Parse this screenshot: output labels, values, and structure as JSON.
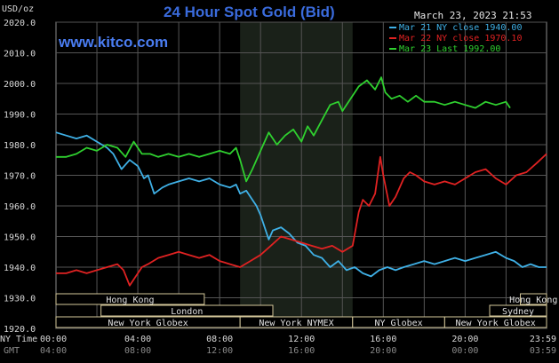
{
  "header": {
    "title": "24 Hour Spot Gold (Bid)",
    "unit": "USD/oz",
    "website": "www.kitco.com",
    "timestamp": "March 23, 2023 21:53"
  },
  "footer": {
    "ny_time_label": "NY Time",
    "gmt_label": "GMT",
    "ny_ticks": [
      "00:00",
      "04:00",
      "08:00",
      "12:00",
      "16:00",
      "20:00",
      "23:59"
    ],
    "gmt_ticks": [
      "04:00",
      "08:00",
      "12:00",
      "16:00",
      "20:00",
      "00:00",
      "03:59"
    ]
  },
  "markets": [
    {
      "name": "Hong Kong",
      "row": 0,
      "start": 0,
      "end": 7.25
    },
    {
      "name": "Hong Kong",
      "row": 0,
      "start": 22.7,
      "end": 23.98
    },
    {
      "name": "London",
      "row": 1,
      "start": 2.2,
      "end": 10.6
    },
    {
      "name": "Sydney",
      "row": 1,
      "start": 21.2,
      "end": 23.98
    },
    {
      "name": "New York Globex",
      "row": 2,
      "start": 0,
      "end": 9.0
    },
    {
      "name": "New York NYMEX",
      "row": 2,
      "start": 9.0,
      "end": 14.5
    },
    {
      "name": "NY Globex",
      "row": 2,
      "start": 14.5,
      "end": 19.0
    },
    {
      "name": "New York Globex",
      "row": 2,
      "start": 19.0,
      "end": 23.98
    }
  ],
  "chart_data": {
    "type": "line",
    "title": "24 Hour Spot Gold (Bid)",
    "ylabel": "USD/oz",
    "xlim": [
      0,
      23.98
    ],
    "ylim": [
      1920,
      2020
    ],
    "yticks": [
      2020,
      2010,
      2000,
      1990,
      1980,
      1970,
      1960,
      1950,
      1940,
      1930,
      1920
    ],
    "ytick_labels": [
      "2020.0",
      "2010.0",
      "2000.0",
      "1990.0",
      "1980.0",
      "1970.0",
      "1960.0",
      "1950.0",
      "1940.0",
      "1930.0",
      "1920.0"
    ],
    "grid": true,
    "legend_position": "top-right",
    "shaded_session": [
      9.0,
      14.5
    ],
    "series": [
      {
        "name": "Mar 21 NY close 1940.00",
        "color": "#3fb0e6",
        "points": [
          [
            0,
            1984
          ],
          [
            0.5,
            1983
          ],
          [
            1,
            1982
          ],
          [
            1.5,
            1983
          ],
          [
            2,
            1981
          ],
          [
            2.5,
            1979
          ],
          [
            2.8,
            1977
          ],
          [
            3.2,
            1972
          ],
          [
            3.6,
            1975
          ],
          [
            4,
            1973
          ],
          [
            4.3,
            1969
          ],
          [
            4.5,
            1970
          ],
          [
            4.8,
            1964
          ],
          [
            5.2,
            1966
          ],
          [
            5.5,
            1967
          ],
          [
            6,
            1968
          ],
          [
            6.5,
            1969
          ],
          [
            7,
            1968
          ],
          [
            7.5,
            1969
          ],
          [
            8,
            1967
          ],
          [
            8.5,
            1966
          ],
          [
            8.8,
            1967
          ],
          [
            9,
            1964
          ],
          [
            9.3,
            1965
          ],
          [
            9.6,
            1962
          ],
          [
            9.8,
            1960
          ],
          [
            10,
            1957
          ],
          [
            10.2,
            1953
          ],
          [
            10.4,
            1949
          ],
          [
            10.6,
            1952
          ],
          [
            11,
            1953
          ],
          [
            11.4,
            1951
          ],
          [
            11.8,
            1948
          ],
          [
            12.2,
            1947
          ],
          [
            12.6,
            1944
          ],
          [
            13,
            1943
          ],
          [
            13.4,
            1940
          ],
          [
            13.8,
            1942
          ],
          [
            14.2,
            1939
          ],
          [
            14.6,
            1940
          ],
          [
            15,
            1938
          ],
          [
            15.4,
            1937
          ],
          [
            15.8,
            1939
          ],
          [
            16.2,
            1940
          ],
          [
            16.6,
            1939
          ],
          [
            17,
            1940
          ],
          [
            17.5,
            1941
          ],
          [
            18,
            1942
          ],
          [
            18.5,
            1941
          ],
          [
            19,
            1942
          ],
          [
            19.5,
            1943
          ],
          [
            20,
            1942
          ],
          [
            20.5,
            1943
          ],
          [
            21,
            1944
          ],
          [
            21.5,
            1945
          ],
          [
            22,
            1943
          ],
          [
            22.4,
            1942
          ],
          [
            22.8,
            1940
          ],
          [
            23.2,
            1941
          ],
          [
            23.6,
            1940
          ],
          [
            23.98,
            1940
          ]
        ]
      },
      {
        "name": "Mar 22 NY close 1970.10",
        "color": "#e02222",
        "points": [
          [
            0,
            1938
          ],
          [
            0.5,
            1938
          ],
          [
            1,
            1939
          ],
          [
            1.5,
            1938
          ],
          [
            2,
            1939
          ],
          [
            2.5,
            1940
          ],
          [
            3,
            1941
          ],
          [
            3.3,
            1939
          ],
          [
            3.6,
            1934
          ],
          [
            3.9,
            1937
          ],
          [
            4.2,
            1940
          ],
          [
            4.5,
            1941
          ],
          [
            5,
            1943
          ],
          [
            5.5,
            1944
          ],
          [
            6,
            1945
          ],
          [
            6.5,
            1944
          ],
          [
            7,
            1943
          ],
          [
            7.5,
            1944
          ],
          [
            8,
            1942
          ],
          [
            8.5,
            1941
          ],
          [
            9,
            1940
          ],
          [
            9.5,
            1942
          ],
          [
            10,
            1944
          ],
          [
            10.5,
            1947
          ],
          [
            11,
            1950
          ],
          [
            11.5,
            1949
          ],
          [
            12,
            1948
          ],
          [
            12.5,
            1947
          ],
          [
            13,
            1946
          ],
          [
            13.5,
            1947
          ],
          [
            14,
            1945
          ],
          [
            14.5,
            1947
          ],
          [
            14.8,
            1958
          ],
          [
            15,
            1962
          ],
          [
            15.3,
            1960
          ],
          [
            15.6,
            1964
          ],
          [
            15.85,
            1976
          ],
          [
            16,
            1970
          ],
          [
            16.3,
            1960
          ],
          [
            16.6,
            1963
          ],
          [
            17,
            1969
          ],
          [
            17.3,
            1971
          ],
          [
            17.6,
            1970
          ],
          [
            18,
            1968
          ],
          [
            18.5,
            1967
          ],
          [
            19,
            1968
          ],
          [
            19.5,
            1967
          ],
          [
            20,
            1969
          ],
          [
            20.5,
            1971
          ],
          [
            21,
            1972
          ],
          [
            21.5,
            1969
          ],
          [
            22,
            1967
          ],
          [
            22.5,
            1970
          ],
          [
            23,
            1971
          ],
          [
            23.5,
            1974
          ],
          [
            23.98,
            1977
          ]
        ]
      },
      {
        "name": "Mar 23 Last 1992.00",
        "color": "#2fd02f",
        "points": [
          [
            0,
            1976
          ],
          [
            0.5,
            1976
          ],
          [
            1,
            1977
          ],
          [
            1.5,
            1979
          ],
          [
            2,
            1978
          ],
          [
            2.5,
            1980
          ],
          [
            3,
            1979
          ],
          [
            3.4,
            1976
          ],
          [
            3.8,
            1981
          ],
          [
            4.2,
            1977
          ],
          [
            4.6,
            1977
          ],
          [
            5,
            1976
          ],
          [
            5.5,
            1977
          ],
          [
            6,
            1976
          ],
          [
            6.5,
            1977
          ],
          [
            7,
            1976
          ],
          [
            7.5,
            1977
          ],
          [
            8,
            1978
          ],
          [
            8.5,
            1977
          ],
          [
            8.8,
            1979
          ],
          [
            9,
            1975
          ],
          [
            9.3,
            1968
          ],
          [
            9.6,
            1972
          ],
          [
            10,
            1978
          ],
          [
            10.4,
            1984
          ],
          [
            10.8,
            1980
          ],
          [
            11.2,
            1983
          ],
          [
            11.6,
            1985
          ],
          [
            12,
            1981
          ],
          [
            12.3,
            1986
          ],
          [
            12.6,
            1983
          ],
          [
            13,
            1988
          ],
          [
            13.4,
            1993
          ],
          [
            13.8,
            1994
          ],
          [
            14,
            1991
          ],
          [
            14.4,
            1995
          ],
          [
            14.8,
            1999
          ],
          [
            15.2,
            2001
          ],
          [
            15.6,
            1998
          ],
          [
            15.9,
            2002
          ],
          [
            16.1,
            1997
          ],
          [
            16.4,
            1995
          ],
          [
            16.8,
            1996
          ],
          [
            17.2,
            1994
          ],
          [
            17.6,
            1996
          ],
          [
            18,
            1994
          ],
          [
            18.5,
            1994
          ],
          [
            19,
            1993
          ],
          [
            19.5,
            1994
          ],
          [
            20,
            1993
          ],
          [
            20.5,
            1992
          ],
          [
            21,
            1994
          ],
          [
            21.5,
            1993
          ],
          [
            22,
            1994
          ],
          [
            22.2,
            1992
          ]
        ]
      }
    ]
  }
}
